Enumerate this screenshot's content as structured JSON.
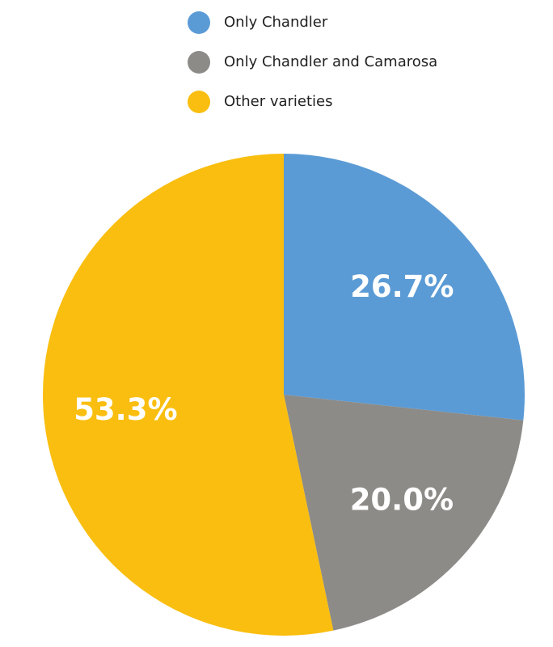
{
  "chart_data": {
    "type": "pie",
    "categories": [
      "Only Chandler",
      "Only Chandler and Camarosa",
      "Other varieties"
    ],
    "values": [
      26.7,
      20.0,
      53.3
    ],
    "value_labels": [
      "26.7%",
      "20.0%",
      "53.3%"
    ],
    "colors": [
      "#5b9bd5",
      "#8c8b87",
      "#f9be0f"
    ]
  }
}
